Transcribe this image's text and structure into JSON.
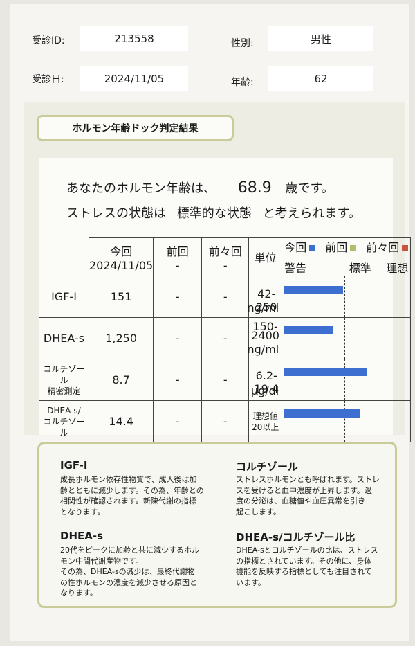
{
  "header": {
    "id_label": "受診ID:",
    "id_value": "213558",
    "sex_label": "性別:",
    "sex_value": "男性",
    "date_label": "受診日:",
    "date_value": "2024/11/05",
    "age_label": "年齢:",
    "age_value": "62"
  },
  "section_title": "ホルモン年齢ドック判定結果",
  "summary": {
    "line1_prefix": "あなたのホルモン年齢は、",
    "hormone_age": "68.9",
    "line1_suffix": "歳です。",
    "line2_prefix": "ストレスの状態は",
    "stress_state": "標準的な状態",
    "line2_suffix": "と考えられます。"
  },
  "table": {
    "col_current": "今回",
    "col_current_date": "2024/11/05",
    "col_prev": "前回",
    "col_prev_date": "-",
    "col_prev2": "前々回",
    "col_prev2_date": "-",
    "col_unit": "単位",
    "legend": {
      "current": "今回",
      "prev": "前回",
      "prev2": "前々回",
      "warning": "警告",
      "standard": "標準",
      "ideal": "理想",
      "current_color": "#3d6fd1",
      "prev_color": "#b4bb6a",
      "prev2_color": "#c9533f"
    },
    "rows": [
      {
        "name": "IGF-I",
        "current": "151",
        "prev": "-",
        "prev2": "-",
        "range": "42-250",
        "unit": "ng/ml",
        "bar": 0.78
      },
      {
        "name": "DHEA-s",
        "current": "1,250",
        "prev": "-",
        "prev2": "-",
        "range": "150-\n2400",
        "unit": "ng/ml",
        "bar": 0.65
      },
      {
        "name": "コルチゾール\n精密測定",
        "current": "8.7",
        "prev": "-",
        "prev2": "-",
        "range": "6.2-19.4",
        "unit": "μg/dl",
        "bar": 1.1
      },
      {
        "name": "DHEA-s/\nコルチゾール",
        "current": "14.4",
        "prev": "-",
        "prev2": "-",
        "range": "理想値\n20以上",
        "unit": "",
        "bar": 1.0
      }
    ]
  },
  "info": {
    "igf_title": "IGF-I",
    "igf_text": "成長ホルモン依存性物質で、成人後は加\n齢とともに減少します。その為、年齢との\n相関性が確認されます。新陳代謝の指標\nとなります。",
    "cort_title": "コルチゾール",
    "cort_text": "ストレスホルモンとも呼ばれます。ストレ\nスを受けると血中濃度が上昇します。過\n度の分泌は、血糖値や血圧異常を引き\n起こします。",
    "dhea_title": "DHEA-s",
    "dhea_text": "20代をピークに加齢と共に減少するホル\nモン中間代謝産物です。\nその為、DHEA-sの減少は、最終代謝物\nの性ホルモンの濃度を減少させる原因と\nなります。",
    "ratio_title": "DHEA-s/コルチゾール比",
    "ratio_text": "DHEA-sとコルチゾールの比は、ストレス\nの指標とされています。その他に、身体\n機能を反映する指標としても注目されて\nいます。"
  }
}
